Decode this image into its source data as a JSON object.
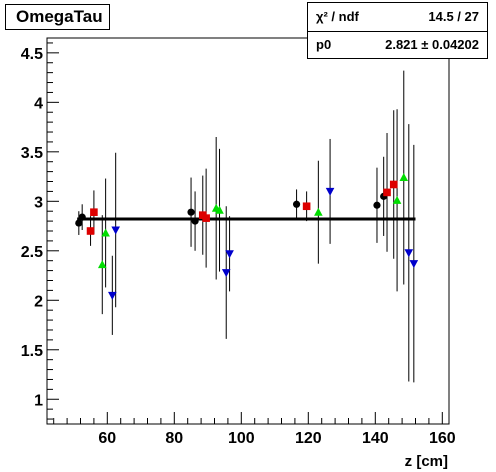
{
  "title": "OmegaTau",
  "stats": {
    "chi2_label": "χ² / ndf",
    "chi2_value": "14.5 / 27",
    "p0_label": "p0",
    "p0_value": "2.821 ± 0.04202"
  },
  "chart_data": {
    "type": "scatter",
    "title": "OmegaTau",
    "xlabel": "z [cm]",
    "ylabel": "",
    "xlim": [
      42,
      162
    ],
    "ylim": [
      0.75,
      4.65
    ],
    "x_ticks": [
      60,
      80,
      100,
      120,
      140,
      160
    ],
    "y_ticks": [
      1,
      1.5,
      2,
      2.5,
      3,
      3.5,
      4,
      4.5
    ],
    "x_tick_labels": [
      "60",
      "80",
      "100",
      "120",
      "140",
      "160"
    ],
    "y_tick_labels": [
      "1",
      "1.5",
      "2",
      "2.5",
      "3",
      "3.5",
      "4",
      "4.5"
    ],
    "fit": {
      "type": "constant",
      "p0": 2.821,
      "x_range": [
        51,
        152
      ]
    },
    "series": [
      {
        "marker": "circle",
        "color": "#000000",
        "points": [
          {
            "x": 51.5,
            "y": 2.78,
            "err": 0.12
          },
          {
            "x": 52.5,
            "y": 2.84,
            "err": 0.13
          },
          {
            "x": 85.0,
            "y": 2.89,
            "err": 0.35
          },
          {
            "x": 86.2,
            "y": 2.8,
            "err": 0.3
          },
          {
            "x": 116.5,
            "y": 2.97,
            "err": 0.15
          },
          {
            "x": 140.5,
            "y": 2.96,
            "err": 0.38
          },
          {
            "x": 142.5,
            "y": 3.05,
            "err": 0.4
          }
        ]
      },
      {
        "marker": "square",
        "color": "#dd0000",
        "points": [
          {
            "x": 55.0,
            "y": 2.7,
            "err": 0.15
          },
          {
            "x": 56.0,
            "y": 2.89,
            "err": 0.22
          },
          {
            "x": 88.5,
            "y": 2.86,
            "err": 0.4
          },
          {
            "x": 89.5,
            "y": 2.83,
            "err": 0.5
          },
          {
            "x": 119.5,
            "y": 2.95,
            "err": 0.15
          },
          {
            "x": 143.5,
            "y": 3.09,
            "err": 0.6
          },
          {
            "x": 145.5,
            "y": 3.17,
            "err": 0.75
          }
        ]
      },
      {
        "marker": "triangle-up",
        "color": "#00dd00",
        "points": [
          {
            "x": 58.5,
            "y": 2.36,
            "err": 0.5
          },
          {
            "x": 59.5,
            "y": 2.68,
            "err": 0.55
          },
          {
            "x": 92.5,
            "y": 2.93,
            "err": 0.72
          },
          {
            "x": 93.5,
            "y": 2.91,
            "err": 0.62
          },
          {
            "x": 123.0,
            "y": 2.89,
            "err": 0.52
          },
          {
            "x": 146.5,
            "y": 3.01,
            "err": 0.92
          },
          {
            "x": 148.5,
            "y": 3.24,
            "err": 1.08
          }
        ]
      },
      {
        "marker": "triangle-down",
        "color": "#0000cc",
        "points": [
          {
            "x": 61.5,
            "y": 2.05,
            "err": 0.4
          },
          {
            "x": 62.5,
            "y": 2.71,
            "err": 0.78
          },
          {
            "x": 95.5,
            "y": 2.28,
            "err": 0.67
          },
          {
            "x": 96.5,
            "y": 2.47,
            "err": 0.38
          },
          {
            "x": 126.5,
            "y": 3.1,
            "err": 0.53
          },
          {
            "x": 150.0,
            "y": 2.48,
            "err": 1.3
          },
          {
            "x": 151.5,
            "y": 2.37,
            "err": 1.2
          }
        ]
      }
    ]
  }
}
